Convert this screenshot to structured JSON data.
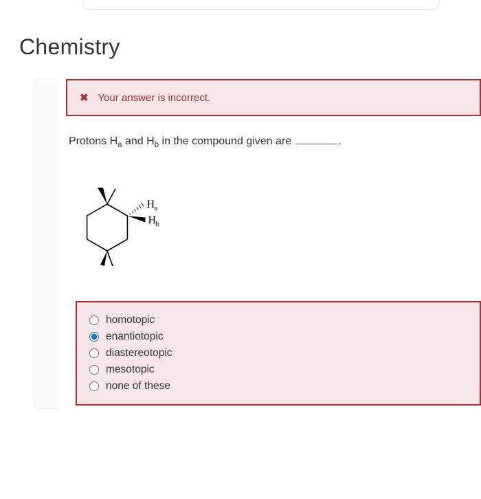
{
  "page_title": "Chemistry",
  "feedback": {
    "icon": "✖",
    "text": "Your answer is incorrect."
  },
  "question": {
    "stem_prefix": "Protons H",
    "sub_a": "a",
    "stem_mid1": " and H",
    "sub_b": "b",
    "stem_mid2": " in the compound given are ",
    "stem_suffix": "."
  },
  "molecule": {
    "label_ha_text": "H",
    "label_ha_sub": "a",
    "label_hb_text": "H",
    "label_hb_sub": "b",
    "stroke": "#000000",
    "stroke_width": 1.6,
    "hash_width": 0.9
  },
  "options": [
    {
      "label": "homotopic",
      "selected": false
    },
    {
      "label": "enantiotopic",
      "selected": true
    },
    {
      "label": "diastereotopic",
      "selected": false
    },
    {
      "label": "mesotopic",
      "selected": false
    },
    {
      "label": "none of these",
      "selected": false
    }
  ],
  "colors": {
    "error_border": "#bb2b2d",
    "error_bg": "#f6e5e6",
    "error_text": "#a83234",
    "accent": "#1b6fd0"
  }
}
